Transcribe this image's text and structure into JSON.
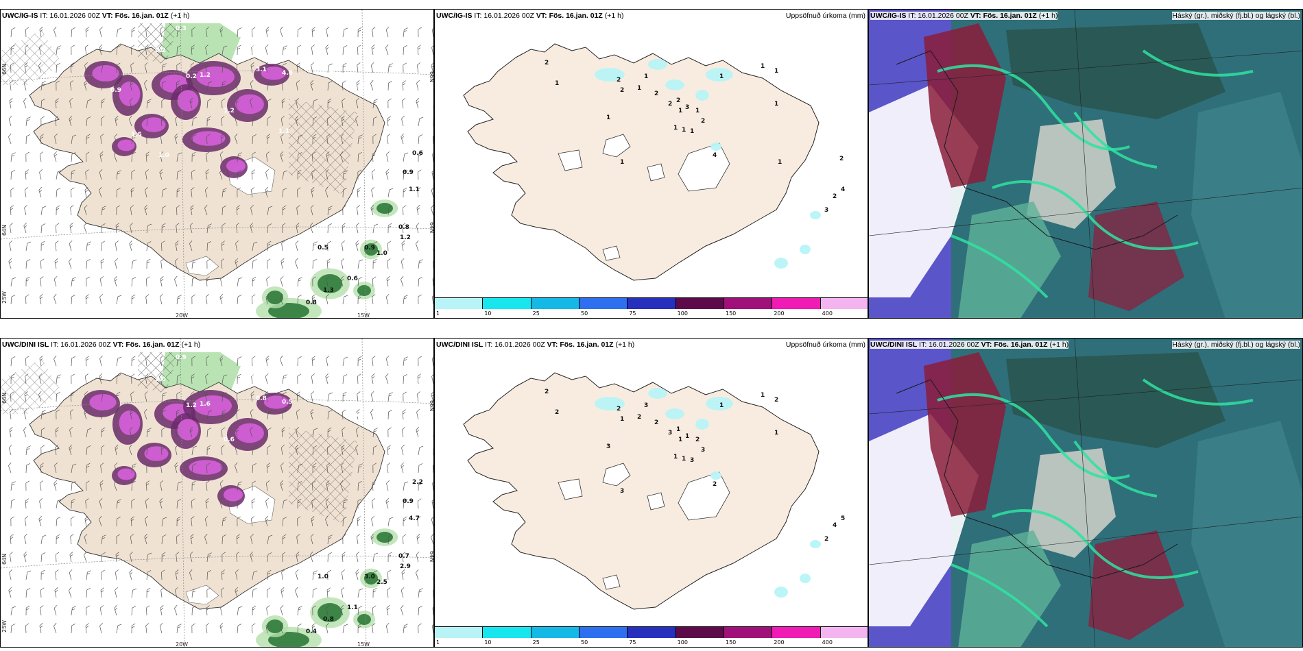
{
  "rows": [
    {
      "model": "UWC/IG-IS",
      "it_label": "IT: 16.01.2026 00Z",
      "vt_label": "VT: Fös. 16.jan. 01Z",
      "offset": "(+1 h)",
      "precip_title": "Uppsöfnuð úrkoma (mm)",
      "cloud_title": "Háský (gr.), miðský (fj.bl.) og lágský (bl.)",
      "wind_values": [
        "0.3",
        "0.2",
        "1.5",
        "0.9",
        "1.2",
        "3.1",
        "4.8",
        "2.9",
        "1.0",
        "0.6",
        "0.9",
        "1.1",
        "0.8",
        "1.2",
        "0.9",
        "1.0",
        "0.5",
        "0.6",
        "1.3",
        "0.8",
        "0.2",
        "1.2",
        "1.1",
        "1.0",
        "1.5",
        "0.9"
      ],
      "precip_values": [
        "2",
        "1",
        "2",
        "2",
        "1",
        "1",
        "2",
        "2",
        "2",
        "1",
        "3",
        "1",
        "2",
        "1",
        "1",
        "1",
        "1",
        "1",
        "1",
        "1",
        "1",
        "1",
        "4",
        "4",
        "2",
        "3",
        "2",
        "1"
      ]
    },
    {
      "model": "UWC/DINI ISL",
      "it_label": "IT: 16.01.2026 00Z",
      "vt_label": "VT: Fös. 16.jan. 01Z",
      "offset": "(+1 h)",
      "precip_title": "Uppsöfnuð úrkoma (mm)",
      "cloud_title": "Háský (gr.), miðský (fj.bl.) og lágský (bl.)",
      "wind_values": [
        "0.9",
        "1.0",
        "1.1",
        "2.9",
        "1.6",
        "0.8",
        "0.5",
        "0.6",
        "0.8",
        "2.2",
        "0.9",
        "4.7",
        "0.7",
        "2.9",
        "3.0",
        "2.5",
        "1.0",
        "1.1",
        "0.8",
        "0.4",
        "1.2",
        "0.6"
      ],
      "precip_values": [
        "2",
        "2",
        "2",
        "1",
        "2",
        "3",
        "2",
        "3",
        "1",
        "1",
        "1",
        "2",
        "3",
        "1",
        "1",
        "3",
        "1",
        "1",
        "2",
        "1",
        "3",
        "3",
        "2",
        "5",
        "4",
        "2"
      ]
    }
  ],
  "axis_labels": {
    "lat_left_top": "66N",
    "lat_left_bottom": "64N",
    "lat_right_top": "66N",
    "lat_right_bottom": "64N",
    "lon_left": "25W",
    "lon_mid": "20W",
    "lon_right": "15W"
  },
  "colorbar": {
    "ticks": [
      "1",
      "10",
      "25",
      "50",
      "75",
      "100",
      "150",
      "200",
      "400"
    ],
    "colors": [
      "#b8f4f7",
      "#18e6ee",
      "#14b9e5",
      "#2e6ff0",
      "#2630bd",
      "#5c0a4a",
      "#a0107a",
      "#f01ab4",
      "#f3b4ef"
    ]
  }
}
